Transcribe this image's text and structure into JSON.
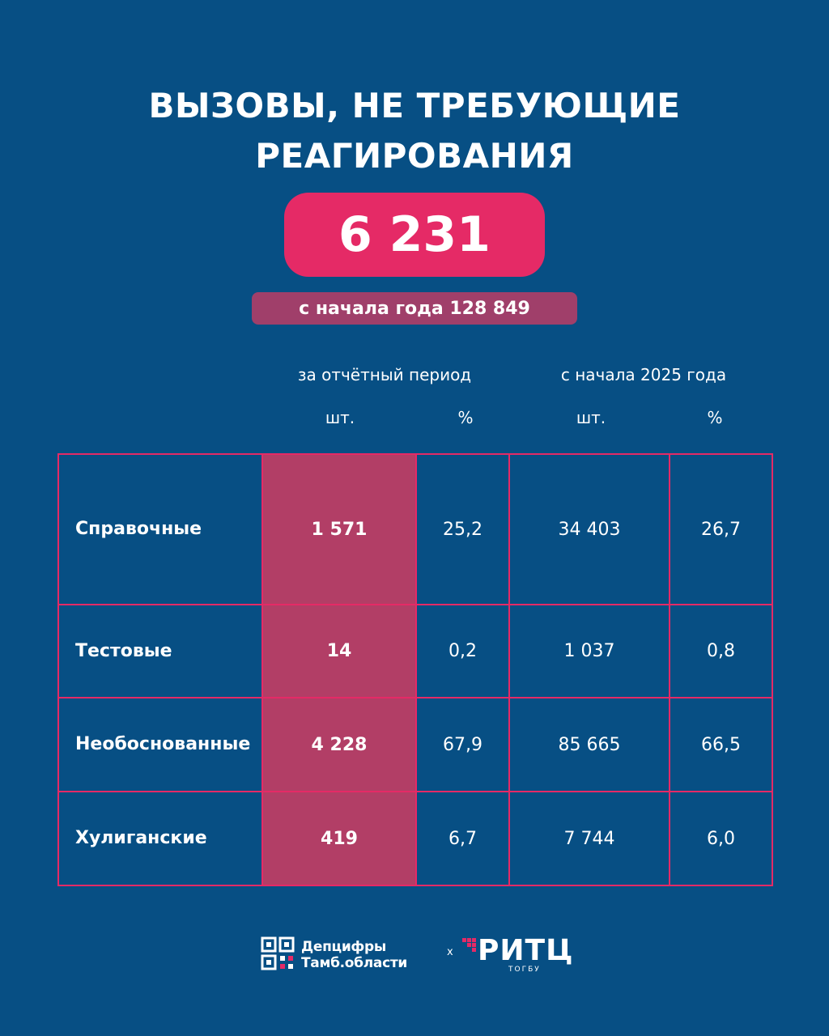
{
  "header": {
    "title_line1": "ВЫЗОВЫ, НЕ ТРЕБУЮЩИЕ",
    "title_line2": "РЕАГИРОВАНИЯ",
    "total": "6 231",
    "ytd": "с начала года 128 849"
  },
  "table": {
    "group_headers": [
      "за отчётный период",
      "с начала 2025 года"
    ],
    "sub_headers": [
      "шт.",
      "%",
      "шт.",
      "%"
    ],
    "rows": [
      {
        "label": "Справочные",
        "period_count": "1 571",
        "period_pct": "25,2",
        "ytd_count": "34 403",
        "ytd_pct": "26,7"
      },
      {
        "label": "Тестовые",
        "period_count": "14",
        "period_pct": "0,2",
        "ytd_count": "1 037",
        "ytd_pct": "0,8"
      },
      {
        "label": "Необоснованные",
        "period_count": "4 228",
        "period_pct": "67,9",
        "ytd_count": "85 665",
        "ytd_pct": "66,5"
      },
      {
        "label": "Хулиганские",
        "period_count": "419",
        "period_pct": "6,7",
        "ytd_count": "7 744",
        "ytd_pct": "6,0"
      }
    ]
  },
  "footer": {
    "logo1_line1": "Депцифры",
    "logo1_line2": "Тамб.области",
    "separator": "x",
    "logo2_name": "РИТЦ",
    "logo2_sub": "ТОГБУ"
  },
  "colors": {
    "background": "#074f84",
    "accent": "#e52a66",
    "highlight_column": "#b23e66",
    "ytd_badge": "#a03f6a"
  },
  "icons": [
    "qr-logo-icon",
    "ritc-logo-icon"
  ]
}
